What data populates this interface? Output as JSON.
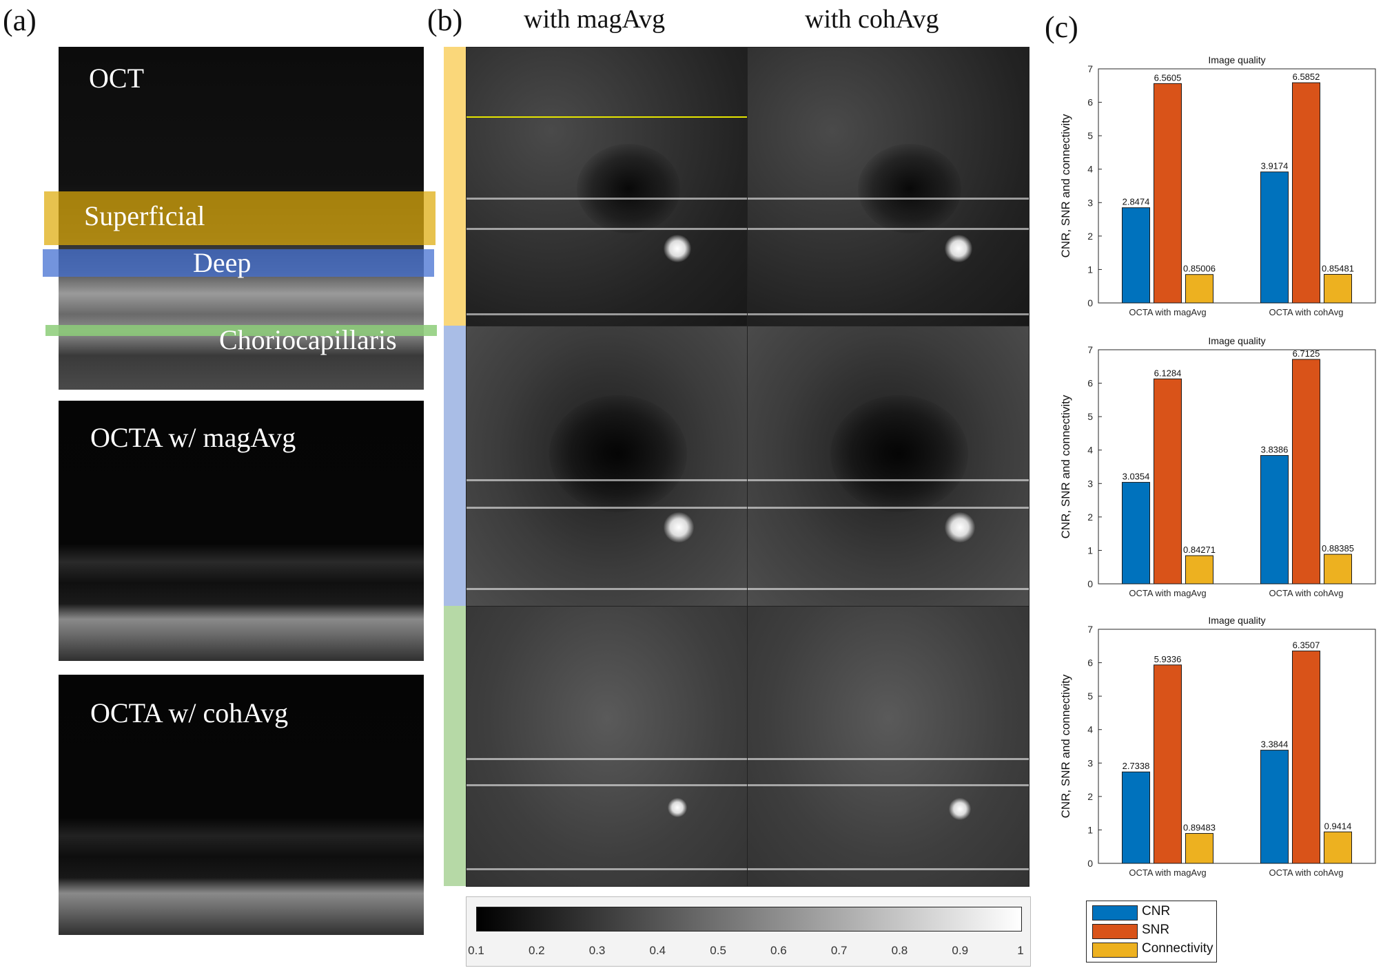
{
  "panel_labels": {
    "a": "(a)",
    "b": "(b)",
    "c": "(c)"
  },
  "panel_a": {
    "oct_label": "OCT",
    "layer_labels": {
      "superficial": "Superficial",
      "deep": "Deep",
      "chorio": "Choriocapillaris"
    },
    "octa_mag_label": "OCTA w/ magAvg",
    "octa_coh_label": "OCTA w/ cohAvg",
    "layer_colors": {
      "superficial": "#e8b000",
      "deep": "#4a78d0",
      "chorio": "#8ccf7a"
    }
  },
  "panel_b": {
    "col_titles": [
      "with magAvg",
      "with cohAvg"
    ],
    "strip_colors": [
      "#fad77a",
      "#a9bde6",
      "#b6d9a6"
    ],
    "colorbar_ticks": [
      "0.1",
      "0.2",
      "0.3",
      "0.4",
      "0.5",
      "0.6",
      "0.7",
      "0.8",
      "0.9",
      "1"
    ]
  },
  "legend": {
    "items": [
      {
        "name": "CNR",
        "color": "#0072BD"
      },
      {
        "name": "SNR",
        "color": "#D95319"
      },
      {
        "name": "Connectivity",
        "color": "#EDB120"
      }
    ]
  },
  "chart_data": [
    {
      "type": "bar",
      "title": "Image quality",
      "ylabel": "CNR, SNR and connectivity",
      "xlabel": "",
      "ylim": [
        0,
        7
      ],
      "yticks": [
        "0",
        "1",
        "2",
        "3",
        "4",
        "5",
        "6",
        "7"
      ],
      "categories": [
        "OCTA with magAvg",
        "OCTA with cohAvg"
      ],
      "series": [
        {
          "name": "CNR",
          "values": [
            2.8474,
            3.9174
          ],
          "labels": [
            "2.8474",
            "3.9174"
          ]
        },
        {
          "name": "SNR",
          "values": [
            6.5605,
            6.5852
          ],
          "labels": [
            "6.5605",
            "6.5852"
          ]
        },
        {
          "name": "Connectivity",
          "values": [
            0.85006,
            0.85481
          ],
          "labels": [
            "0.85006",
            "0.85481"
          ]
        }
      ]
    },
    {
      "type": "bar",
      "title": "Image quality",
      "ylabel": "CNR, SNR and connectivity",
      "xlabel": "",
      "ylim": [
        0,
        7
      ],
      "yticks": [
        "0",
        "1",
        "2",
        "3",
        "4",
        "5",
        "6",
        "7"
      ],
      "categories": [
        "OCTA with magAvg",
        "OCTA with cohAvg"
      ],
      "series": [
        {
          "name": "CNR",
          "values": [
            3.0354,
            3.8386
          ],
          "labels": [
            "3.0354",
            "3.8386"
          ]
        },
        {
          "name": "SNR",
          "values": [
            6.1284,
            6.7125
          ],
          "labels": [
            "6.1284",
            "6.7125"
          ]
        },
        {
          "name": "Connectivity",
          "values": [
            0.84271,
            0.88385
          ],
          "labels": [
            "0.84271",
            "0.88385"
          ]
        }
      ]
    },
    {
      "type": "bar",
      "title": "Image quality",
      "ylabel": "CNR, SNR and connectivity",
      "xlabel": "",
      "ylim": [
        0,
        7
      ],
      "yticks": [
        "0",
        "1",
        "2",
        "3",
        "4",
        "5",
        "6",
        "7"
      ],
      "categories": [
        "OCTA with magAvg",
        "OCTA with cohAvg"
      ],
      "series": [
        {
          "name": "CNR",
          "values": [
            2.7338,
            3.3844
          ],
          "labels": [
            "2.7338",
            "3.3844"
          ]
        },
        {
          "name": "SNR",
          "values": [
            5.9336,
            6.3507
          ],
          "labels": [
            "5.9336",
            "6.3507"
          ]
        },
        {
          "name": "Connectivity",
          "values": [
            0.89483,
            0.9414
          ],
          "labels": [
            "0.89483",
            "0.9414"
          ]
        }
      ]
    }
  ]
}
